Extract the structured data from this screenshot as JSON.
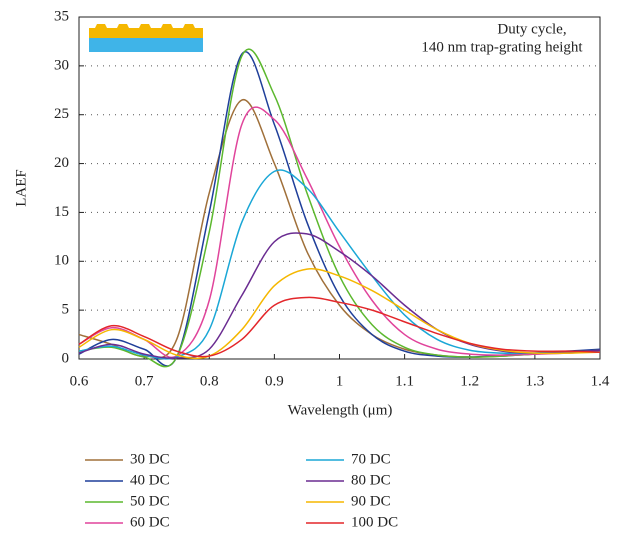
{
  "chart_data": {
    "type": "line",
    "xlabel": "Wavelength (μm)",
    "ylabel": "LAEF",
    "annotation": [
      "Duty cycle,",
      "140 nm trap-grating height"
    ],
    "x": [
      0.6,
      0.65,
      0.7,
      0.75,
      0.8,
      0.85,
      0.9,
      0.95,
      1.0,
      1.05,
      1.1,
      1.15,
      1.2,
      1.25,
      1.3,
      1.35,
      1.4
    ],
    "xlim": [
      0.6,
      1.4
    ],
    "xticks": [
      0.6,
      0.7,
      0.8,
      0.9,
      1,
      1.1,
      1.2,
      1.3,
      1.4
    ],
    "ylim": [
      0,
      35
    ],
    "yticks": [
      0,
      5,
      10,
      15,
      20,
      25,
      30,
      35
    ],
    "grid": true,
    "series": [
      {
        "name": "30 DC",
        "color": "#a0703a",
        "values": [
          2.5,
          1.5,
          0.3,
          2,
          17,
          26.5,
          20,
          11,
          5.5,
          2.5,
          1.0,
          0.4,
          0.2,
          0.3,
          0.5,
          0.7,
          0.9
        ]
      },
      {
        "name": "40 DC",
        "color": "#1f3f9a",
        "values": [
          0.5,
          2.0,
          1.0,
          0.2,
          15,
          31.2,
          24,
          14,
          6.5,
          2.5,
          0.8,
          0.3,
          0.2,
          0.4,
          0.6,
          0.8,
          1.0
        ]
      },
      {
        "name": "50 DC",
        "color": "#5cb82e",
        "values": [
          0.8,
          1.2,
          0.2,
          0.2,
          13,
          31,
          27,
          17,
          8.5,
          3.5,
          1.2,
          0.4,
          0.2,
          0.3,
          0.5,
          0.7,
          0.9
        ]
      },
      {
        "name": "60 DC",
        "color": "#e0449b",
        "values": [
          1.5,
          3.2,
          2.0,
          0.3,
          6,
          24,
          24.5,
          18.5,
          11.5,
          6,
          2.5,
          1.0,
          0.5,
          0.4,
          0.5,
          0.6,
          0.8
        ]
      },
      {
        "name": "70 DC",
        "color": "#1aa7d6",
        "values": [
          0.8,
          1.3,
          0.4,
          0.2,
          3,
          14,
          19.2,
          17.5,
          13,
          8.5,
          4.5,
          2.0,
          0.9,
          0.6,
          0.6,
          0.7,
          0.8
        ]
      },
      {
        "name": "80 DC",
        "color": "#6a2c91",
        "values": [
          0.6,
          1.5,
          0.5,
          0.1,
          1,
          6.5,
          12,
          12.8,
          11,
          8.5,
          5.5,
          3,
          1.5,
          0.8,
          0.6,
          0.7,
          0.9
        ]
      },
      {
        "name": "90 DC",
        "color": "#f5b700",
        "values": [
          1.2,
          3.0,
          2.0,
          0.4,
          0.3,
          3,
          7.5,
          9.2,
          8.5,
          7,
          5,
          3,
          1.6,
          0.9,
          0.6,
          0.6,
          0.7
        ]
      },
      {
        "name": "100 DC",
        "color": "#e3262a",
        "values": [
          1.5,
          3.4,
          2.3,
          0.8,
          0.3,
          2,
          5.5,
          6.3,
          5.8,
          5,
          3.8,
          2.6,
          1.6,
          1.0,
          0.8,
          0.8,
          0.7
        ]
      }
    ]
  }
}
